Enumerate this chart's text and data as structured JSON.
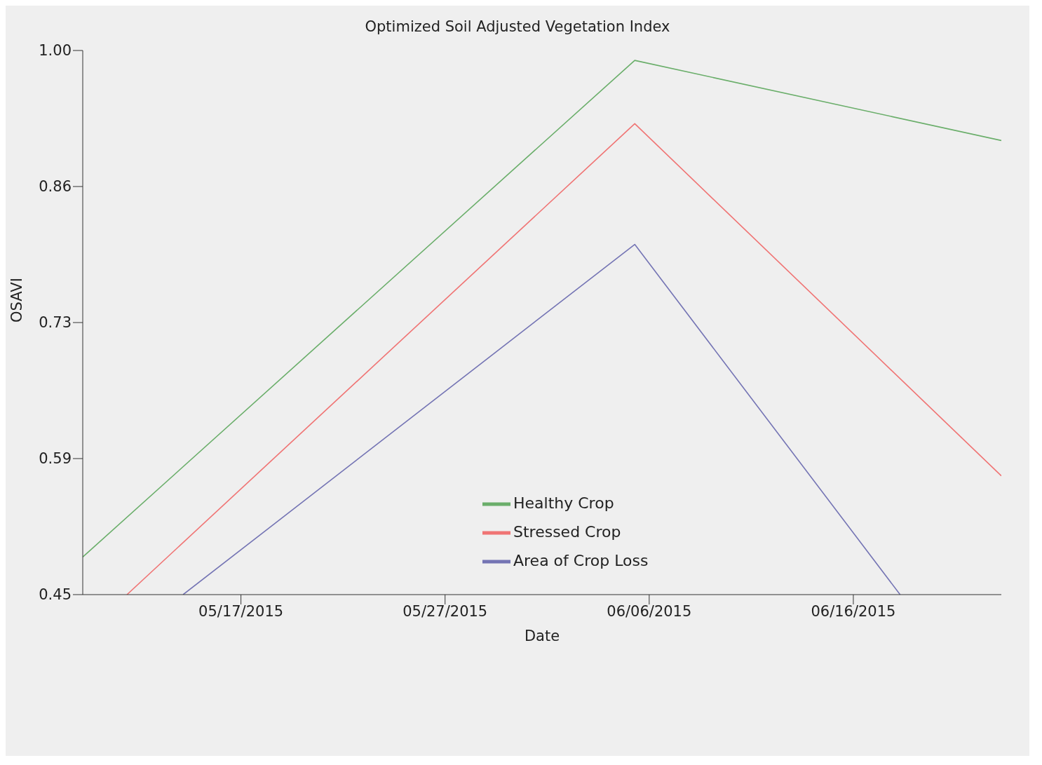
{
  "chart_data": {
    "type": "line",
    "title": "Optimized Soil Adjusted Vegetation Index",
    "xlabel": "Date",
    "ylabel": "OSAVI",
    "xlim": [
      "2015-05-09T06:00",
      "2015-06-23T06:00"
    ],
    "xticks": [
      {
        "value": "2015-05-17",
        "label": "05/17/2015"
      },
      {
        "value": "2015-05-27",
        "label": "05/27/2015"
      },
      {
        "value": "2015-06-06",
        "label": "06/06/2015"
      },
      {
        "value": "2015-06-16",
        "label": "06/16/2015"
      }
    ],
    "ylim": [
      0.45,
      1.0
    ],
    "yticks": [
      {
        "value": 0.45,
        "label": "0.45"
      },
      {
        "value": 0.5875,
        "label": "0.59"
      },
      {
        "value": 0.725,
        "label": "0.73"
      },
      {
        "value": 0.8625,
        "label": "0.86"
      },
      {
        "value": 1.0,
        "label": "1.00"
      }
    ],
    "series": [
      {
        "name": "Healthy Crop",
        "color": "#6aae6a",
        "x": [
          "2015-05-09T06:00",
          "2015-06-05T07:00",
          "2015-06-23T06:00"
        ],
        "values": [
          0.488,
          0.99,
          0.909
        ]
      },
      {
        "name": "Stressed Crop",
        "color": "#f07474",
        "x": [
          "2015-05-11T10:00",
          "2015-06-05T07:00",
          "2015-06-23T06:00"
        ],
        "values": [
          0.45,
          0.926,
          0.57
        ]
      },
      {
        "name": "Area of Crop Loss",
        "color": "#7474b4",
        "x": [
          "2015-05-14T04:00",
          "2015-06-05T07:00",
          "2015-06-18T07:00"
        ],
        "values": [
          0.45,
          0.804,
          0.45
        ]
      }
    ],
    "legend": "bottom",
    "grid": false,
    "marker": "none",
    "line_style": "solid"
  }
}
